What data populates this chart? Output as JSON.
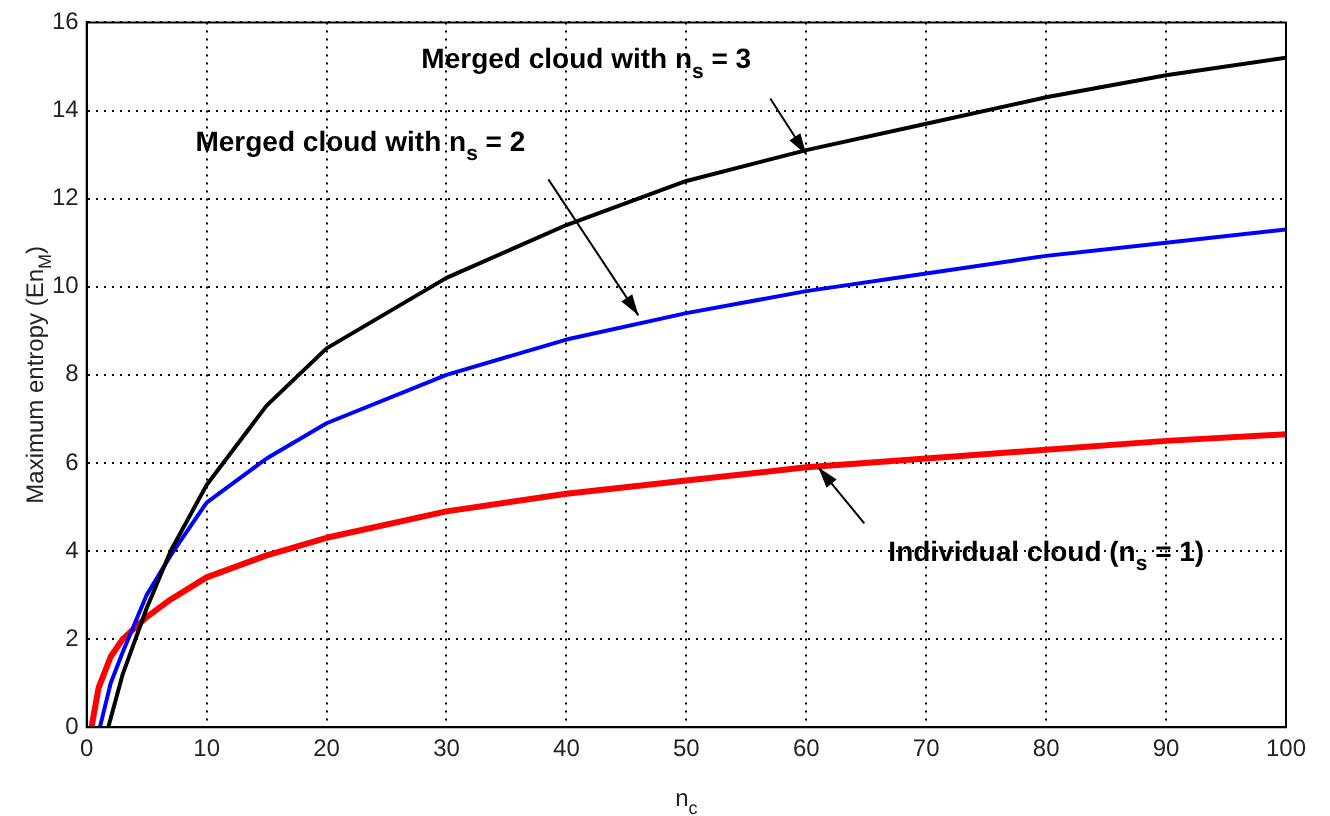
{
  "chart_data": {
    "type": "line",
    "xlabel": "n$_{c}$",
    "ylabel": "Maximum entropy (En$_{M}$)",
    "xlim": [
      0,
      100
    ],
    "xticks": [
      0,
      10,
      20,
      30,
      40,
      50,
      60,
      70,
      80,
      90,
      100
    ],
    "ylim": [
      0,
      16
    ],
    "yticks": [
      0,
      2,
      4,
      6,
      8,
      10,
      12,
      14,
      16
    ],
    "grid": true,
    "legend": false,
    "marker": "none",
    "line_style": "solid",
    "series": [
      {
        "color": "#000000",
        "x": [
          1.8,
          3,
          5,
          7,
          10,
          15,
          20,
          30,
          40,
          50,
          60,
          70,
          80,
          90,
          100
        ],
        "values": [
          0,
          1.2,
          2.7,
          4.0,
          5.5,
          7.3,
          8.6,
          10.2,
          11.4,
          12.4,
          13.1,
          13.7,
          14.3,
          14.8,
          15.2
        ]
      },
      {
        "color": "#0000ff",
        "x": [
          1.1,
          2,
          3,
          5,
          7,
          10,
          15,
          20,
          30,
          40,
          50,
          60,
          70,
          80,
          90,
          100
        ],
        "values": [
          0,
          1.0,
          1.7,
          3.0,
          3.9,
          5.1,
          6.1,
          6.9,
          8.0,
          8.8,
          9.4,
          9.9,
          10.3,
          10.7,
          11.0,
          11.3
        ]
      },
      {
        "color": "#ff0000",
        "x": [
          0.4,
          1,
          2,
          3,
          5,
          7,
          10,
          15,
          20,
          30,
          40,
          50,
          60,
          70,
          80,
          90,
          100
        ],
        "values": [
          0,
          0.9,
          1.6,
          2.0,
          2.5,
          2.9,
          3.4,
          3.9,
          4.3,
          4.9,
          5.3,
          5.6,
          5.9,
          6.1,
          6.3,
          6.5,
          6.65
        ]
      }
    ],
    "annotations": [
      {
        "text": "Merged cloud with n$_{s}$ = 3",
        "x": 60,
        "y": 13.0
      },
      {
        "text": "Merged cloud with n$_{s}$ = 2",
        "x": 46,
        "y": 9.35
      },
      {
        "text": "Individual cloud (n$_{s}$ = 1)",
        "x": 61,
        "y": 5.9
      }
    ]
  }
}
